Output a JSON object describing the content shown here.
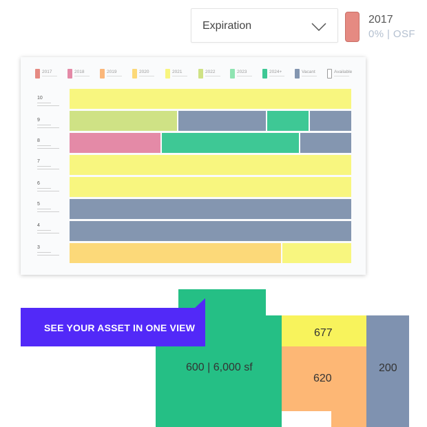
{
  "filter": {
    "selected": "Expiration",
    "icon": "chevron-down-icon"
  },
  "year_summary": {
    "year": "2017",
    "stats": "0% | OSF",
    "color": "#e58a82"
  },
  "legend": [
    {
      "label": "2017",
      "color": "#e58a82"
    },
    {
      "label": "2018",
      "color": "#e48aa7"
    },
    {
      "label": "2019",
      "color": "#fbb77a"
    },
    {
      "label": "2020",
      "color": "#fcd979"
    },
    {
      "label": "2021",
      "color": "#f8f57f"
    },
    {
      "label": "2022",
      "color": "#cfe285"
    },
    {
      "label": "2023",
      "color": "#8fe4b2"
    },
    {
      "label": "2024+",
      "color": "#3ec895"
    },
    {
      "label": "Vacant",
      "color": "#8496b0"
    },
    {
      "label": "Available",
      "color": "#ffffff"
    }
  ],
  "floors": [
    {
      "label": "10"
    },
    {
      "label": "9"
    },
    {
      "label": "8"
    },
    {
      "label": "7"
    },
    {
      "label": "6"
    },
    {
      "label": "5"
    },
    {
      "label": "4"
    },
    {
      "label": "3"
    }
  ],
  "floorplan": {
    "banner": "SEE YOUR ASSET IN ONE VIEW",
    "suites": [
      {
        "label": "600 | 6,000 sf",
        "color": "#25bf85"
      },
      {
        "label": "677",
        "color": "#f8f35c"
      },
      {
        "label": "620",
        "color": "#fdb775"
      },
      {
        "label": "200",
        "color": "#7f92b0"
      }
    ]
  }
}
